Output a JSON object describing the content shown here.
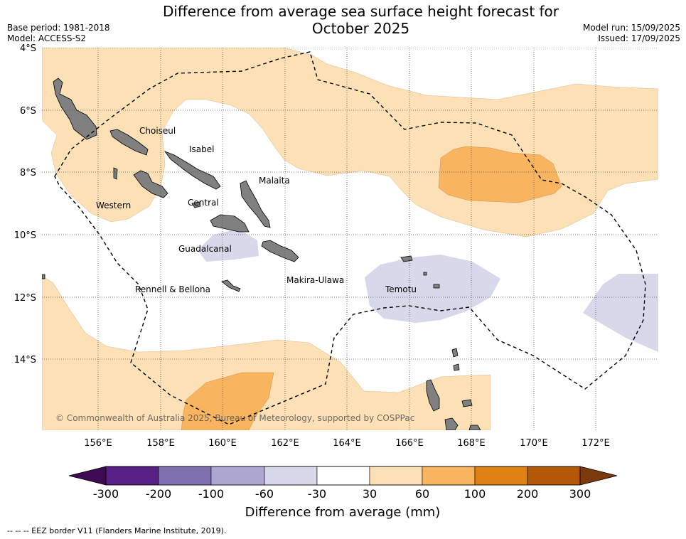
{
  "header": {
    "title_line1": "Difference from average sea surface height forecast for",
    "title_line2": "October 2025",
    "base_period": "Base period: 1981-2018",
    "model": "Model: ACCESS-S2",
    "model_run": "Model run: 15/09/2025",
    "issued": "Issued: 17/09/2025"
  },
  "map": {
    "lat_labels": [
      "4°S",
      "6°S",
      "8°S",
      "10°S",
      "12°S",
      "14°S"
    ],
    "lon_labels": [
      "156°E",
      "158°E",
      "160°E",
      "162°E",
      "164°E",
      "166°E",
      "168°E",
      "170°E",
      "172°E"
    ],
    "places": {
      "choiseul": "Choiseul",
      "isabel": "Isabel",
      "malaita": "Malaita",
      "western": "Western",
      "central": "Central",
      "guadalcanal": "Guadalcanal",
      "makira": "Makira-Ulawa",
      "temotu": "Temotu",
      "rennell": "Rennell & Bellona"
    },
    "copyright": "© Commonwealth of Australia 2025, Bureau of Meteorology, supported by COSPPac",
    "land_color": "#808080",
    "colors": {
      "neg_30_60": "#d7d8e9",
      "pos_30_60": "#fde0b6",
      "pos_60_100": "#f9b45f"
    }
  },
  "colorbar": {
    "ticks": [
      "-300",
      "-200",
      "-100",
      "-60",
      "-30",
      "30",
      "60",
      "100",
      "200",
      "300"
    ],
    "colors": [
      "#3f0a53",
      "#562085",
      "#7e70ad",
      "#aea7d1",
      "#d7d8e9",
      "#ffffff",
      "#fde0b6",
      "#f9b45f",
      "#e08213",
      "#b25807",
      "#7b3a0a"
    ],
    "title": "Difference from average (mm)"
  },
  "footnote": "-- -- -- EEZ border V11 (Flanders Marine Institute, 2019)."
}
